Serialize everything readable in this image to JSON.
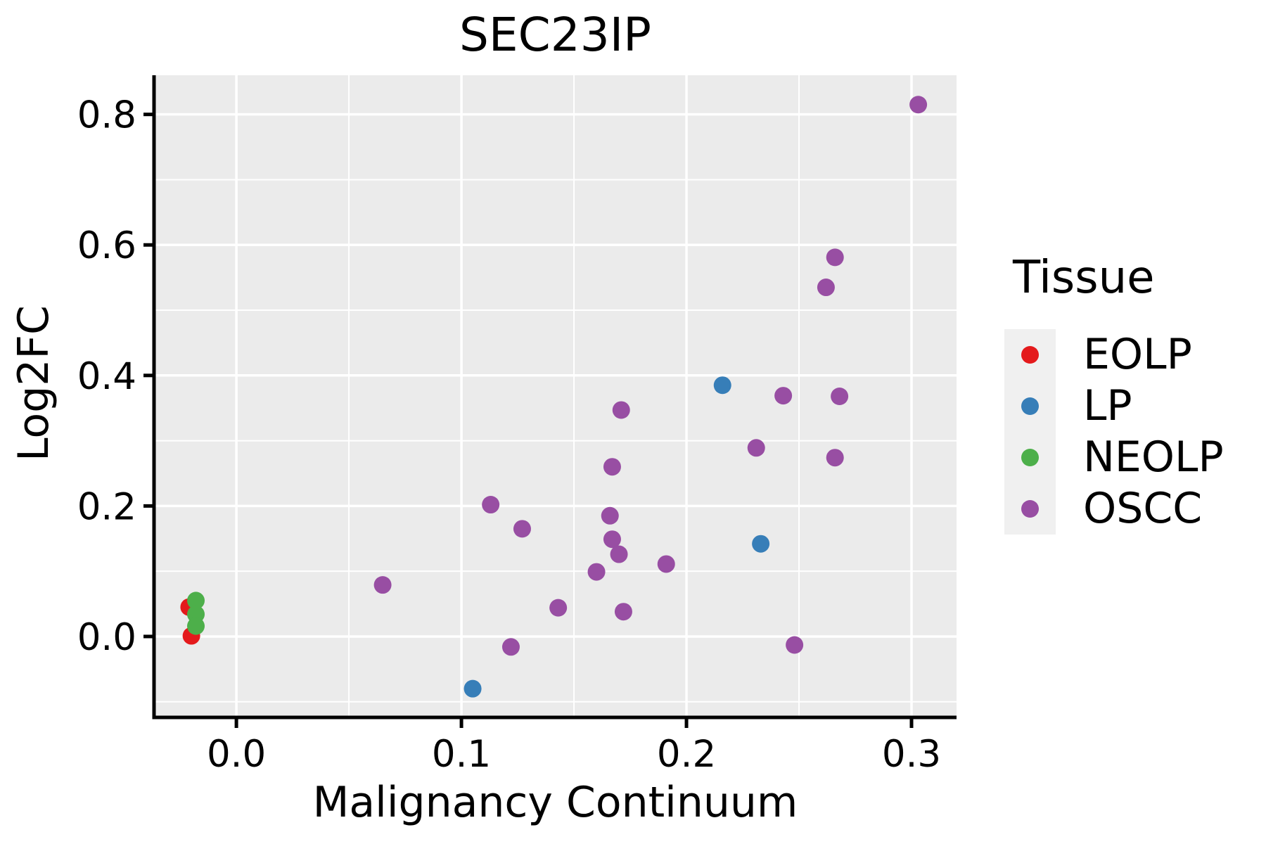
{
  "chart_data": {
    "type": "scatter",
    "title": "SEC23IP",
    "xlabel": "Malignancy Continuum",
    "ylabel": "Log2FC",
    "x_axis": {
      "range": [
        -0.0366,
        0.32
      ],
      "ticks": [
        0.0,
        0.1,
        0.2,
        0.3
      ],
      "tick_labels": [
        "0.0",
        "0.1",
        "0.2",
        "0.3"
      ],
      "minor_ticks": [
        0.05,
        0.15,
        0.25
      ]
    },
    "y_axis": {
      "range": [
        -0.124,
        0.86
      ],
      "ticks": [
        0.0,
        0.2,
        0.4,
        0.6,
        0.8
      ],
      "tick_labels": [
        "0.0",
        "0.2",
        "0.4",
        "0.6",
        "0.8"
      ],
      "minor_ticks": [
        -0.1,
        0.1,
        0.3,
        0.5,
        0.7
      ]
    },
    "legend": {
      "title": "Tissue",
      "position": "right"
    },
    "series": [
      {
        "name": "EOLP",
        "color": "#E41A1C",
        "points": [
          [
            -0.021,
            0.045
          ],
          [
            -0.02,
            0.001
          ]
        ]
      },
      {
        "name": "LP",
        "color": "#377EB8",
        "points": [
          [
            0.105,
            -0.08
          ],
          [
            0.216,
            0.385
          ],
          [
            0.233,
            0.142
          ]
        ]
      },
      {
        "name": "NEOLP",
        "color": "#4DAF4A",
        "points": [
          [
            -0.018,
            0.055
          ],
          [
            -0.018,
            0.034
          ],
          [
            -0.018,
            0.016
          ]
        ]
      },
      {
        "name": "OSCC",
        "color": "#984EA3",
        "points": [
          [
            0.065,
            0.079
          ],
          [
            0.113,
            0.202
          ],
          [
            0.122,
            -0.016
          ],
          [
            0.127,
            0.165
          ],
          [
            0.143,
            0.044
          ],
          [
            0.16,
            0.099
          ],
          [
            0.166,
            0.185
          ],
          [
            0.167,
            0.149
          ],
          [
            0.17,
            0.126
          ],
          [
            0.167,
            0.26
          ],
          [
            0.171,
            0.347
          ],
          [
            0.172,
            0.038
          ],
          [
            0.191,
            0.111
          ],
          [
            0.231,
            0.289
          ],
          [
            0.243,
            0.369
          ],
          [
            0.248,
            -0.013
          ],
          [
            0.262,
            0.535
          ],
          [
            0.266,
            0.581
          ],
          [
            0.266,
            0.274
          ],
          [
            0.268,
            0.368
          ],
          [
            0.303,
            0.815
          ]
        ]
      }
    ],
    "style": {
      "panel_bg": "#EBEBEB",
      "grid_color": "#FFFFFF",
      "axis_color": "#000000",
      "text_color": "#000000",
      "legend_key_bg": "#F0F0F0",
      "point_radius": 12.5
    }
  }
}
